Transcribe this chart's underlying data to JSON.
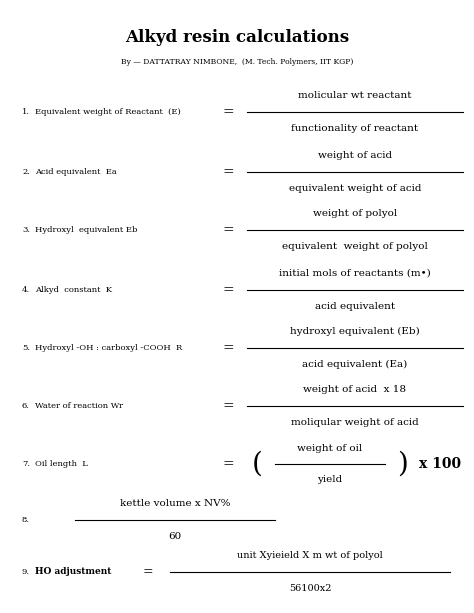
{
  "title": "Alkyd resin calculations",
  "subtitle": "By — DATTATRAY NIMBONE,  (M. Tech. Polymers, IIT KGP)",
  "background_color": "#ffffff",
  "items": [
    {
      "num": "1.",
      "label": "Equivalent weight of Reactant  (E)",
      "label_bold_suffix": "(E)",
      "numerator": "molicular wt reactant",
      "denominator": "functionality of reactant",
      "special": "normal"
    },
    {
      "num": "2.",
      "label": "Acid equivalent  Ea",
      "numerator": "weight of acid",
      "denominator": "equivalent weight of acid",
      "special": "normal"
    },
    {
      "num": "3.",
      "label": "Hydroxyl  equivalent Eb",
      "numerator": "weight of polyol",
      "denominator": "equivalent  weight of polyol",
      "special": "normal"
    },
    {
      "num": "4.",
      "label": "Alkyd  constant  K",
      "numerator": "initial mols of reactants (m•)",
      "denominator": "acid equivalent",
      "special": "normal"
    },
    {
      "num": "5.",
      "label": "Hydroxyl -OH : carboxyl -COOH  R",
      "numerator": "hydroxyl equivalent (Eb)",
      "denominator": "acid equivalent (Ea)",
      "special": "normal"
    },
    {
      "num": "6.",
      "label": "Water of reaction Wr",
      "numerator": "weight of acid  x 18",
      "denominator": "moliqular weight of acid",
      "special": "normal"
    },
    {
      "num": "7.",
      "label": "Oil length  L",
      "numerator": "weight of oil",
      "denominator": "yield",
      "special": "paren_x100"
    },
    {
      "num": "8.",
      "label": "",
      "numerator": "kettle volume x NV%",
      "denominator": "60",
      "special": "fraction_only"
    },
    {
      "num": "9.",
      "label": "HO adjustment",
      "numerator": "unit Xyieield X m wt of polyol",
      "denominator": "56100x2",
      "special": "inline_eq"
    }
  ]
}
